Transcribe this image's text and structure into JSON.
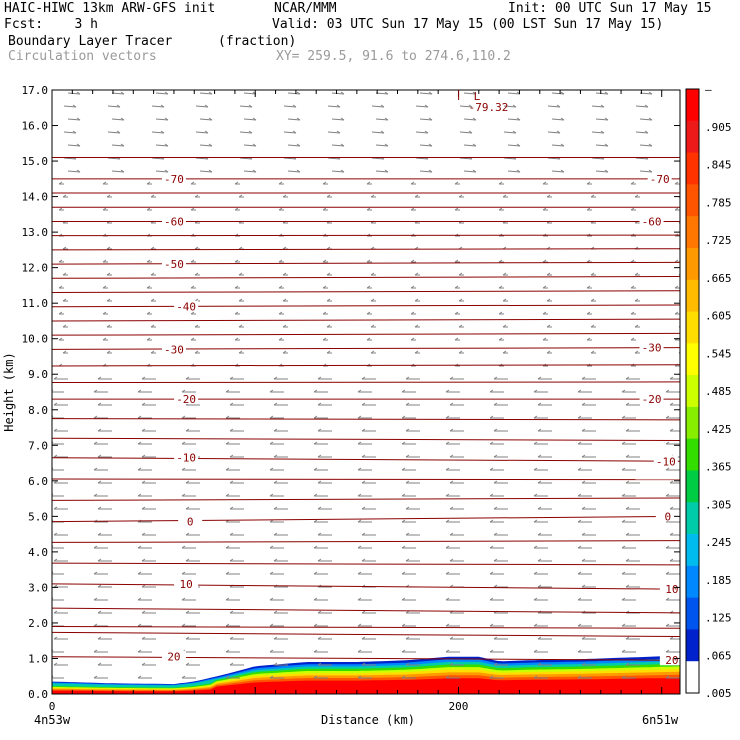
{
  "header": {
    "model": "HAIC-HIWC 13km ARW-GFS init",
    "center": "NCAR/MMM",
    "init": "Init: 00 UTC Sun 17 May 15",
    "fcst": "Fcst:    3 h",
    "valid": "Valid: 03 UTC Sun 17 May 15 (00 LST Sun 17 May 15)",
    "field": "Boundary Layer Tracer",
    "field_units": "(fraction)",
    "vectors": "Circulation vectors",
    "xy": "XY= 259.5, 91.6 to 274.6,110.2"
  },
  "chart_data": {
    "type": "heatmap",
    "title": "Boundary Layer Tracer",
    "xlabel": "Distance (km)",
    "ylabel": "Height (km)",
    "ylim": [
      0,
      17
    ],
    "y_ticks": [
      "0.0",
      "1.0",
      "2.0",
      "3.0",
      "4.0",
      "5.0",
      "6.0",
      "7.0",
      "8.0",
      "9.0",
      "10.0",
      "11.0",
      "12.0",
      "13.0",
      "14.0",
      "15.0",
      "16.0",
      "17.0"
    ],
    "x_ticks": [
      {
        "value": 0,
        "label": "0"
      },
      {
        "value": 200,
        "label": "200"
      }
    ],
    "x_end_labels": {
      "left": "4n53w",
      "right": "6n51w"
    },
    "x_range_km": [
      0,
      309
    ],
    "colorbar": {
      "labels": [
        "–",
        ".905",
        ".845",
        ".785",
        ".725",
        ".665",
        ".605",
        ".545",
        ".485",
        ".425",
        ".365",
        ".305",
        ".245",
        ".185",
        ".125",
        ".065",
        ".005"
      ],
      "colors": [
        "#ff0000",
        "#ee1a1a",
        "#ff3300",
        "#ff5500",
        "#ff7700",
        "#ff9900",
        "#ffbb00",
        "#ffdd00",
        "#ffff00",
        "#ccff00",
        "#88ee00",
        "#33dd00",
        "#00cc44",
        "#00ccaa",
        "#00bbee",
        "#0088ff",
        "#0055ee",
        "#0022cc",
        "#ffffff"
      ]
    },
    "tracer_top_km": [
      [
        0,
        0.35
      ],
      [
        30,
        0.3
      ],
      [
        60,
        0.28
      ],
      [
        70,
        0.35
      ],
      [
        85,
        0.55
      ],
      [
        100,
        0.78
      ],
      [
        125,
        0.9
      ],
      [
        150,
        0.9
      ],
      [
        175,
        0.95
      ],
      [
        195,
        1.05
      ],
      [
        210,
        1.05
      ],
      [
        220,
        0.92
      ],
      [
        235,
        0.95
      ],
      [
        260,
        0.98
      ],
      [
        280,
        1.02
      ],
      [
        309,
        1.08
      ]
    ],
    "temperature_contours": [
      {
        "label": "20",
        "y_left": 1.05,
        "y_right": 0.95
      },
      {
        "label": "10",
        "y_left": 3.1,
        "y_right": 2.95
      },
      {
        "label": "0",
        "y_left": 4.85,
        "y_right": 5.0
      },
      {
        "label": "-10",
        "y_left": 6.65,
        "y_right": 6.55
      },
      {
        "label": "-20",
        "y_left": 8.3,
        "y_right": 8.3
      },
      {
        "label": "-30",
        "y_left": 9.7,
        "y_right": 9.75
      },
      {
        "label": "-40",
        "y_left": 10.9,
        "y_right": 10.95
      },
      {
        "label": "-50",
        "y_left": 12.1,
        "y_right": 12.15
      },
      {
        "label": "-60",
        "y_left": 13.3,
        "y_right": 13.3
      },
      {
        "label": "-70",
        "y_left": 14.5,
        "y_right": 14.5
      }
    ],
    "temperature_labels": [
      {
        "text": "-70",
        "x": 60,
        "y": 14.5
      },
      {
        "text": "-70",
        "x": 299,
        "y": 14.5
      },
      {
        "text": "-60",
        "x": 60,
        "y": 13.3
      },
      {
        "text": "-60",
        "x": 295,
        "y": 13.3
      },
      {
        "text": "-50",
        "x": 60,
        "y": 12.1
      },
      {
        "text": "-40",
        "x": 66,
        "y": 10.9
      },
      {
        "text": "-30",
        "x": 60,
        "y": 9.7
      },
      {
        "text": "-30",
        "x": 295,
        "y": 9.75
      },
      {
        "text": "-20",
        "x": 66,
        "y": 8.3
      },
      {
        "text": "-20",
        "x": 295,
        "y": 8.3
      },
      {
        "text": "-10",
        "x": 66,
        "y": 6.65
      },
      {
        "text": "-10",
        "x": 302,
        "y": 6.55
      },
      {
        "text": "0",
        "x": 68,
        "y": 4.85
      },
      {
        "text": "0",
        "x": 303,
        "y": 5.0
      },
      {
        "text": "10",
        "x": 66,
        "y": 3.1
      },
      {
        "text": "10",
        "x": 305,
        "y": 2.95
      },
      {
        "text": "20",
        "x": 60,
        "y": 1.05
      },
      {
        "text": "20",
        "x": 305,
        "y": 0.95
      }
    ],
    "low_marker": {
      "text": "L",
      "value": "-79.32",
      "x": 205,
      "y": 16.8
    },
    "contour_color": "#8b0000",
    "vector_color": "#808080"
  }
}
